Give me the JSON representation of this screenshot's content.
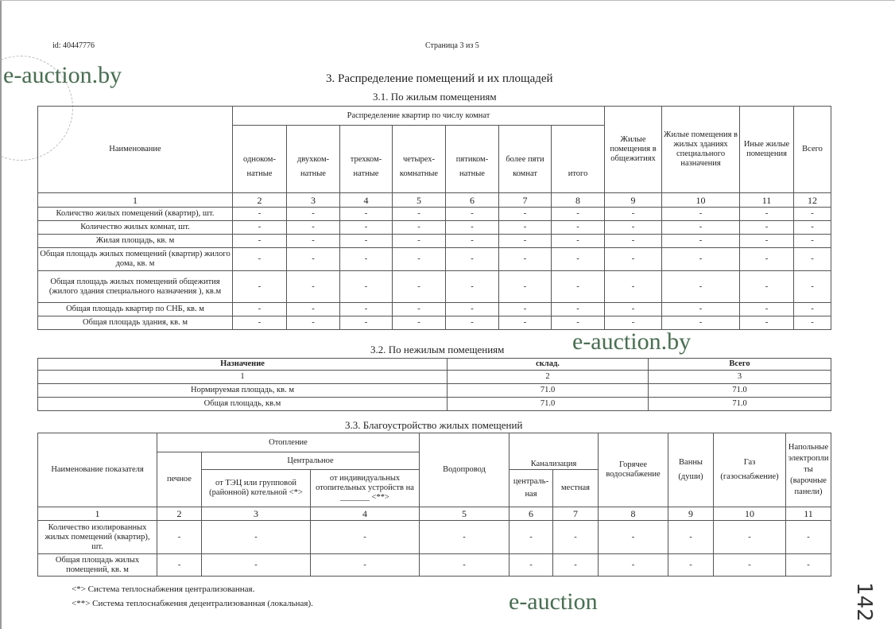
{
  "header": {
    "doc_id": "id: 40447776",
    "page": "Страница 3 из 5"
  },
  "watermark": "e-auction.by",
  "watermark_cut": "e-auction",
  "title": "3. Распределение помещений и их площадей",
  "section1": {
    "title": "3.1. По жилым помещениям",
    "name_header": "Наименование",
    "group_header": "Распределение квартир по числу комнат",
    "sub_headers": [
      "одноком-натные",
      "двухком-натные",
      "трехком-натные",
      "четырех-комнатные",
      "пятиком-натные",
      "более пяти комнат",
      "итого"
    ],
    "other_headers": [
      "Жилые помещения в общежитиях",
      "Жилые помещения в жилых зданиях специального назначения",
      "Иные жилые помещения",
      "Всего"
    ],
    "numbers": [
      "1",
      "2",
      "3",
      "4",
      "5",
      "6",
      "7",
      "8",
      "9",
      "10",
      "11",
      "12"
    ],
    "rows": [
      {
        "label": "Количство жилых помещений (квартир), шт.",
        "values": [
          "-",
          "-",
          "-",
          "-",
          "-",
          "-",
          "-",
          "-",
          "-",
          "-",
          "-"
        ]
      },
      {
        "label": "Количество жилых комнат, шт.",
        "values": [
          "-",
          "-",
          "-",
          "-",
          "-",
          "-",
          "-",
          "-",
          "-",
          "-",
          "-"
        ]
      },
      {
        "label": "Жилая площадь, кв. м",
        "values": [
          "-",
          "-",
          "-",
          "-",
          "-",
          "-",
          "-",
          "-",
          "-",
          "-",
          "-"
        ]
      },
      {
        "label": "Общая площадь жилых помещений (квартир) жилого дома, кв. м",
        "values": [
          "-",
          "-",
          "-",
          "-",
          "-",
          "-",
          "-",
          "-",
          "-",
          "-",
          "-"
        ]
      },
      {
        "label": "Общая площадь жилых помещений общежития (жилого здания специального назначения ), кв.м",
        "values": [
          "-",
          "-",
          "-",
          "-",
          "-",
          "-",
          "-",
          "-",
          "-",
          "-",
          "-"
        ]
      },
      {
        "label": "Общая площадь квартир по СНБ, кв. м",
        "values": [
          "-",
          "-",
          "-",
          "-",
          "-",
          "-",
          "-",
          "-",
          "-",
          "-",
          "-"
        ]
      },
      {
        "label": "Общая площадь здания, кв. м",
        "values": [
          "-",
          "-",
          "-",
          "-",
          "-",
          "-",
          "-",
          "-",
          "-",
          "-",
          "-"
        ]
      }
    ]
  },
  "section2": {
    "title": "3.2. По нежилым помещениям",
    "headers": [
      "Назначение",
      "склад.",
      "Всего"
    ],
    "numbers": [
      "1",
      "2",
      "3"
    ],
    "rows": [
      {
        "label": "Нормируемая площадь, кв. м",
        "values": [
          "71.0",
          "71.0"
        ]
      },
      {
        "label": "Общая площадь, кв.м",
        "values": [
          "71.0",
          "71.0"
        ]
      }
    ]
  },
  "section3": {
    "title": "3.3. Благоустройство жилых помещений",
    "name_header": "Наименование показателя",
    "heating": "Отопление",
    "stove": "печное",
    "central": "Центральное",
    "central_sub": [
      "от ТЭЦ или групповой (районной) котельной <*>",
      "от индивидуальных отопительных устройств на _______ <**>"
    ],
    "water": "Водопровод",
    "sewerage": "Канализация",
    "sewerage_sub": [
      "централь-ная",
      "местная"
    ],
    "hot_water": "Горячее водоснабжение",
    "baths": "Ванны (души)",
    "gas": "Газ (газоснабжение)",
    "stoves": "Напольные электроплиты (варочные панели)",
    "numbers": [
      "1",
      "2",
      "3",
      "4",
      "5",
      "6",
      "7",
      "8",
      "9",
      "10",
      "11"
    ],
    "rows": [
      {
        "label": "Количество изолированных жилых помещений (квартир), шт.",
        "values": [
          "-",
          "-",
          "-",
          "-",
          "-",
          "-",
          "-",
          "-",
          "-",
          "-"
        ]
      },
      {
        "label": "Общая площадь жилых помещений, кв. м",
        "values": [
          "-",
          "-",
          "-",
          "-",
          "-",
          "-",
          "-",
          "-",
          "-",
          "-"
        ]
      }
    ]
  },
  "footnotes": [
    "<*> Система теплоснабжения централизованная.",
    "<**> Система теплоснабжения децентрализованная (локальная)."
  ],
  "handwritten_page_number": "142"
}
